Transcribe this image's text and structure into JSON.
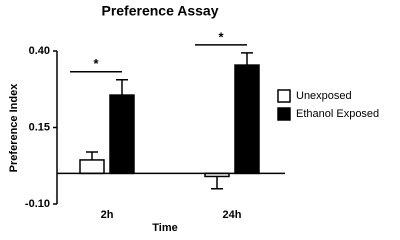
{
  "chart_data": {
    "type": "bar",
    "title": "Preference Assay",
    "x_label": "Time",
    "y_label": "Preference Index",
    "categories": [
      "2h",
      "24h"
    ],
    "series": [
      {
        "name": "Unexposed",
        "color": "#ffffff",
        "values": [
          0.044,
          -0.01
        ],
        "errors": [
          0.026,
          0.04
        ]
      },
      {
        "name": "Ethanol Exposed",
        "color": "#000000",
        "values": [
          0.256,
          0.354
        ],
        "errors": [
          0.05,
          0.04
        ]
      }
    ],
    "annotations": [
      "*",
      "*"
    ],
    "ylim": [
      -0.1,
      0.4
    ],
    "yticks": [
      {
        "value": -0.1,
        "label": "-0.10"
      },
      0.15,
      {
        "value": 0.4,
        "label": "0.40"
      }
    ],
    "legend": "right"
  }
}
